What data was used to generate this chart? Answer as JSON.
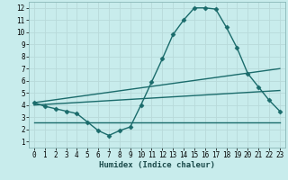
{
  "xlabel": "Humidex (Indice chaleur)",
  "bg_color": "#c8ecec",
  "grid_color": "#b8dada",
  "line_color": "#1a6b6b",
  "xlim": [
    -0.5,
    23.5
  ],
  "ylim": [
    0.5,
    12.5
  ],
  "xticks": [
    0,
    1,
    2,
    3,
    4,
    5,
    6,
    7,
    8,
    9,
    10,
    11,
    12,
    13,
    14,
    15,
    16,
    17,
    18,
    19,
    20,
    21,
    22,
    23
  ],
  "yticks": [
    1,
    2,
    3,
    4,
    5,
    6,
    7,
    8,
    9,
    10,
    11,
    12
  ],
  "line1_x": [
    0,
    1,
    2,
    3,
    4,
    5,
    6,
    7,
    8,
    9,
    10,
    11,
    12,
    13,
    14,
    15,
    16,
    17,
    18,
    19,
    20,
    21,
    22,
    23
  ],
  "line1_y": [
    4.2,
    3.9,
    3.7,
    3.5,
    3.3,
    2.6,
    1.9,
    1.5,
    1.9,
    2.2,
    4.0,
    5.9,
    7.8,
    9.8,
    11.0,
    12.0,
    12.0,
    11.9,
    10.4,
    8.7,
    6.6,
    5.5,
    4.4,
    3.5
  ],
  "line2_x": [
    0,
    23
  ],
  "line2_y": [
    4.2,
    7.0
  ],
  "line3_x": [
    0,
    23
  ],
  "line3_y": [
    4.0,
    5.2
  ],
  "line4_x": [
    0,
    23
  ],
  "line4_y": [
    2.6,
    2.6
  ],
  "marker": "D",
  "markersize": 2.5,
  "linewidth": 1.0
}
